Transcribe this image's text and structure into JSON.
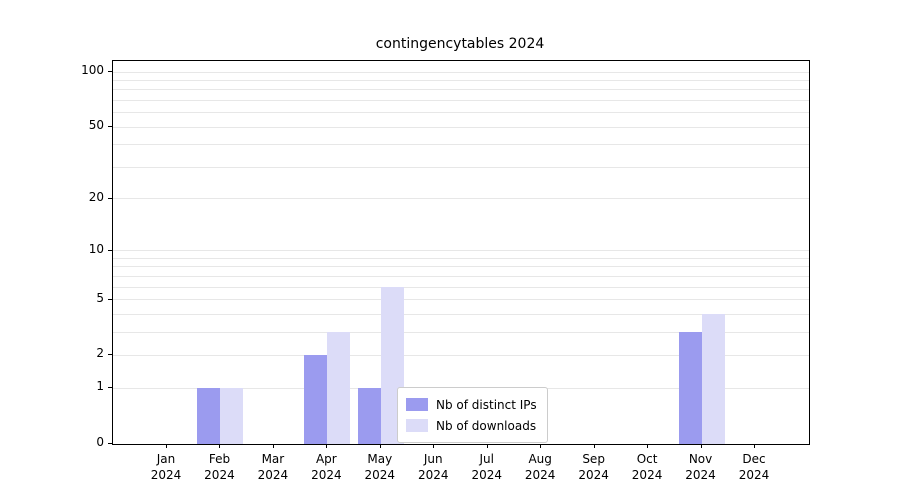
{
  "title": "contingencytables 2024",
  "chart_data": {
    "type": "bar",
    "title": "contingencytables 2024",
    "categories": [
      "Jan",
      "Feb",
      "Mar",
      "Apr",
      "May",
      "Jun",
      "Jul",
      "Aug",
      "Sep",
      "Oct",
      "Nov",
      "Dec"
    ],
    "category_year": "2024",
    "series": [
      {
        "name": "Nb of distinct IPs",
        "color": "#9b9bef",
        "values": [
          0,
          1,
          0,
          2,
          1,
          0,
          0,
          0,
          0,
          0,
          3,
          0
        ]
      },
      {
        "name": "Nb of downloads",
        "color": "#dcdcf8",
        "values": [
          0,
          1,
          0,
          3,
          6,
          0,
          0,
          0,
          0,
          0,
          4,
          0
        ]
      }
    ],
    "yticks": [
      0,
      1,
      2,
      5,
      10,
      20,
      50,
      100
    ],
    "minor_gridlines": [
      1,
      2,
      3,
      4,
      5,
      6,
      7,
      8,
      9,
      10,
      20,
      30,
      40,
      50,
      60,
      70,
      80,
      90,
      100
    ],
    "yscale": "log1p",
    "ylim": [
      0,
      115
    ],
    "grid": true,
    "legend_position": "inside lower center",
    "grid_color": "#e7e7e7",
    "axis_color": "#000000"
  },
  "legend": {
    "items": [
      {
        "label": "Nb of distinct IPs",
        "color": "#9b9bef"
      },
      {
        "label": "Nb of downloads",
        "color": "#dcdcf8"
      }
    ]
  }
}
